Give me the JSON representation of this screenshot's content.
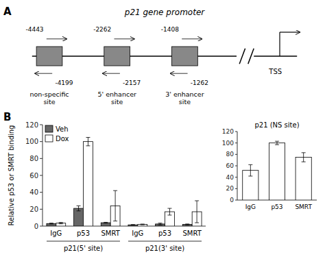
{
  "chart_data": [
    {
      "type": "schematic",
      "title": "p21 gene promoter",
      "color": "#888888",
      "annotations": [
        "A",
        "TSS",
        "-4443",
        "-4199",
        "non-specific\nsite",
        "-2262",
        "-2157",
        "5' enhancer\nsite",
        "-1408",
        "-1262",
        "3' enhancer\nsite"
      ]
    },
    {
      "type": "bar",
      "categories": [
        "IgG",
        "p53",
        "SMRT",
        "IgG",
        "p53",
        "SMRT"
      ],
      "ylabel": "Relative p53 or SMRT binding",
      "series": [
        {
          "name": "Veh",
          "color": "#666666",
          "values": [
            3.0,
            21.0,
            4.0,
            1.5,
            2.5,
            2.0
          ],
          "errors": [
            0.5,
            3.0,
            0.5,
            0.3,
            1.0,
            0.5
          ]
        },
        {
          "name": "Dox",
          "color": "#ffffff",
          "values": [
            3.5,
            100.0,
            24.0,
            2.0,
            17.0,
            17.0
          ],
          "errors": [
            0.8,
            5.0,
            18.0,
            0.4,
            4.0,
            13.0
          ]
        }
      ],
      "ylim": [
        0,
        120
      ],
      "yticks": [
        0,
        20,
        40,
        60,
        80,
        100,
        120
      ],
      "grid": false,
      "legend": "upper left",
      "annotations": [
        "B",
        "p21(5' site)",
        "p21(3' site)"
      ]
    },
    {
      "type": "bar",
      "title": "p21 (NS site)",
      "categories": [
        "IgG",
        "p53",
        "SMRT"
      ],
      "values": [
        52.0,
        100.0,
        75.0
      ],
      "errors": [
        10.0,
        3.0,
        8.0
      ],
      "color": "#ffffff",
      "ylim": [
        0,
        120
      ],
      "yticks": [
        0,
        20,
        40,
        60,
        80,
        100,
        120
      ],
      "grid": false
    }
  ]
}
